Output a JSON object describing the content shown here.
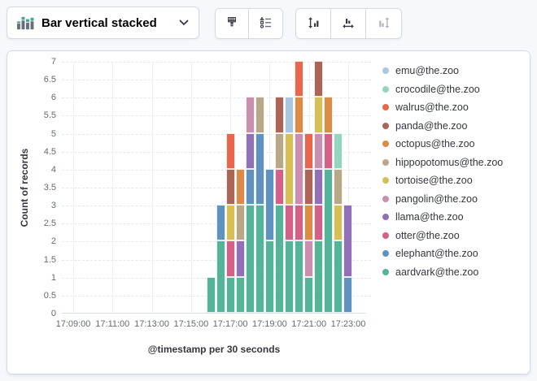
{
  "toolbar": {
    "chart_type": {
      "label": "Bar vertical stacked",
      "icon": "bar-vertical-stacked-icon"
    },
    "style_buttons": [
      {
        "icon": "brush-icon"
      },
      {
        "icon": "legend-settings-icon"
      }
    ],
    "axis_buttons": [
      {
        "icon": "left-axis-icon",
        "disabled": false
      },
      {
        "icon": "bottom-axis-icon",
        "disabled": false
      },
      {
        "icon": "right-axis-icon",
        "disabled": true
      }
    ]
  },
  "colors": {
    "accent_green": "#4ba793",
    "icon_gray": "#69707d",
    "icon_disabled": "#abb4c2",
    "panel_border": "#d3dae6",
    "text": "#343741",
    "tick_text": "#646a77"
  },
  "chart_data": {
    "type": "bar",
    "stacked": true,
    "title": "",
    "xlabel": "@timestamp per 30 seconds",
    "ylabel": "Count of records",
    "ylim": [
      0,
      7
    ],
    "grid": true,
    "legend_position": "right",
    "y_ticks": [
      "0",
      "0.5",
      "1",
      "1.5",
      "2",
      "2.5",
      "3",
      "3.5",
      "4",
      "4.5",
      "5",
      "5.5",
      "6",
      "6.5",
      "7"
    ],
    "x_ticks": [
      "17:09:00",
      "17:11:00",
      "17:13:00",
      "17:15:00",
      "17:17:00",
      "17:19:00",
      "17:21:00",
      "17:23:00"
    ],
    "categories": [
      "17:16:00",
      "17:16:30",
      "17:17:00",
      "17:17:30",
      "17:18:00",
      "17:18:30",
      "17:19:00",
      "17:19:30",
      "17:20:00",
      "17:20:30",
      "17:21:00",
      "17:21:30",
      "17:22:00",
      "17:22:30",
      "17:23:00"
    ],
    "series": [
      {
        "name": "aardvark@the.zoo",
        "color": "#54b399",
        "values": [
          1,
          2,
          1,
          1,
          3,
          3,
          2,
          3,
          2,
          2,
          1,
          2,
          4,
          2,
          0
        ]
      },
      {
        "name": "elephant@the.zoo",
        "color": "#6092c0",
        "values": [
          0,
          1,
          0,
          0,
          1,
          2,
          2,
          0,
          0,
          0,
          0,
          0,
          0,
          0,
          1
        ]
      },
      {
        "name": "otter@the.zoo",
        "color": "#d36086",
        "values": [
          0,
          0,
          1,
          0,
          0,
          0,
          0,
          1,
          1,
          1,
          0,
          1,
          1,
          0,
          0
        ]
      },
      {
        "name": "llama@the.zoo",
        "color": "#9170b8",
        "values": [
          0,
          0,
          0,
          1,
          1,
          0,
          0,
          0,
          0,
          0,
          0,
          1,
          0,
          0,
          2
        ]
      },
      {
        "name": "pangolin@the.zoo",
        "color": "#ca8eae",
        "values": [
          0,
          0,
          0,
          0,
          1,
          0,
          0,
          0,
          0,
          2,
          1,
          1,
          0,
          0,
          0
        ]
      },
      {
        "name": "tortoise@the.zoo",
        "color": "#d6bf57",
        "values": [
          0,
          0,
          1,
          0,
          0,
          0,
          0,
          0,
          2,
          0,
          0,
          1,
          0,
          1,
          0
        ]
      },
      {
        "name": "hippopotomus@the.zoo",
        "color": "#b9a888",
        "values": [
          0,
          0,
          0,
          1,
          0,
          1,
          0,
          1,
          0,
          0,
          0,
          0,
          0,
          1,
          0
        ]
      },
      {
        "name": "octopus@the.zoo",
        "color": "#da8b45",
        "values": [
          0,
          0,
          0,
          1,
          0,
          0,
          0,
          0,
          0,
          1,
          1,
          0,
          1,
          0,
          0
        ]
      },
      {
        "name": "panda@the.zoo",
        "color": "#aa6556",
        "values": [
          0,
          0,
          1,
          0,
          0,
          0,
          0,
          1,
          0,
          0,
          1,
          1,
          0,
          0,
          0
        ]
      },
      {
        "name": "walrus@the.zoo",
        "color": "#e7664c",
        "values": [
          0,
          0,
          1,
          0,
          0,
          0,
          0,
          0,
          0,
          1,
          1,
          0,
          0,
          0,
          0
        ]
      },
      {
        "name": "crocodile@the.zoo",
        "color": "#93d5be",
        "values": [
          0,
          0,
          0,
          0,
          0,
          0,
          0,
          0,
          0,
          0,
          0,
          0,
          0,
          1,
          0
        ]
      },
      {
        "name": "emu@the.zoo",
        "color": "#a9c7e1",
        "values": [
          0,
          0,
          0,
          0,
          0,
          0,
          0,
          0,
          1,
          0,
          0,
          0,
          0,
          0,
          0
        ]
      }
    ]
  }
}
